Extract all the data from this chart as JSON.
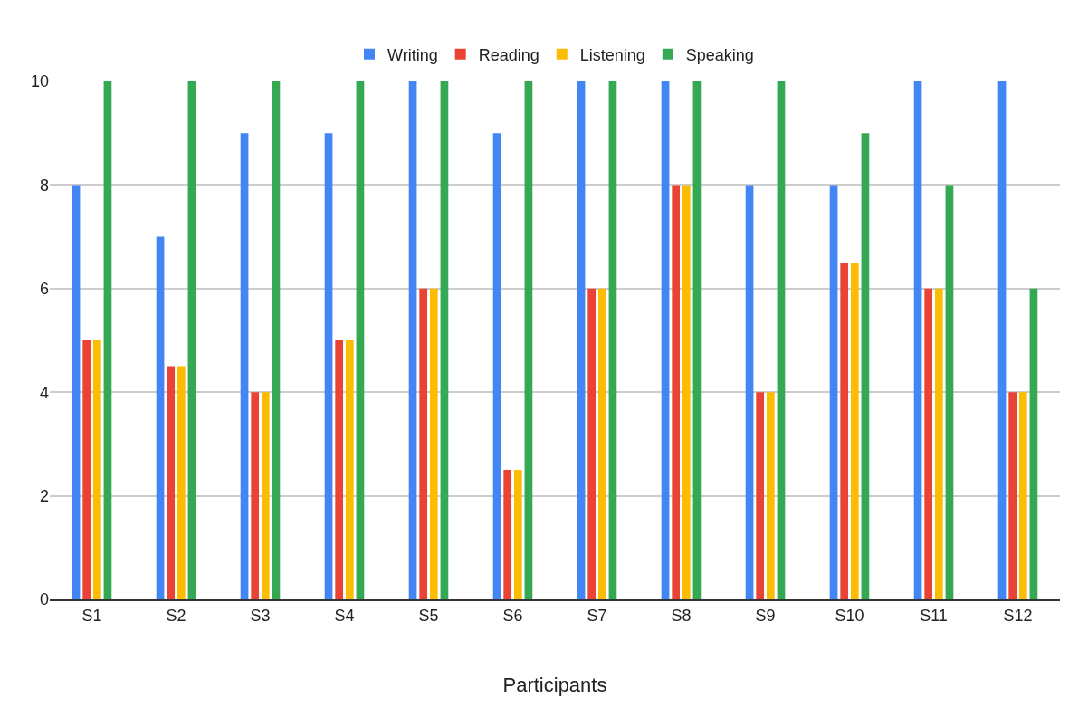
{
  "chart_data": {
    "type": "bar",
    "xlabel": "Participants",
    "categories": [
      "S1",
      "S2",
      "S3",
      "S4",
      "S5",
      "S6",
      "S7",
      "S8",
      "S9",
      "S10",
      "S11",
      "S12"
    ],
    "series": [
      {
        "name": "Writing",
        "color": "#4285f4",
        "values": [
          8,
          7,
          9,
          9,
          10,
          9,
          10,
          10,
          8,
          8,
          10,
          10
        ]
      },
      {
        "name": "Reading",
        "color": "#ea4335",
        "values": [
          5,
          4.5,
          4,
          5,
          6,
          2.5,
          6,
          8,
          4,
          6.5,
          6,
          4
        ]
      },
      {
        "name": "Listening",
        "color": "#fbbc04",
        "values": [
          5,
          4.5,
          4,
          5,
          6,
          2.5,
          6,
          8,
          4,
          6.5,
          6,
          4
        ]
      },
      {
        "name": "Speaking",
        "color": "#34a853",
        "values": [
          10,
          10,
          10,
          10,
          10,
          10,
          10,
          10,
          10,
          9,
          8,
          6
        ]
      }
    ],
    "ylim": [
      0,
      10
    ],
    "yticks": [
      0,
      2,
      4,
      6,
      8,
      10
    ],
    "grid": "y",
    "legend": "top"
  }
}
